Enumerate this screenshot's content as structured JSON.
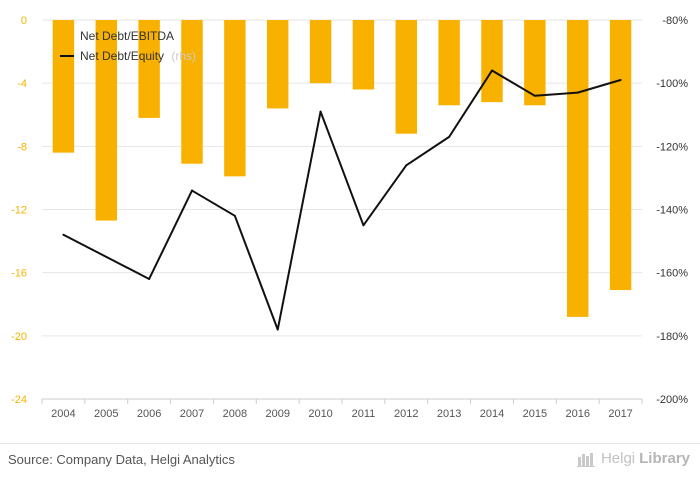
{
  "chart_data": {
    "type": "bar",
    "categories": [
      "2004",
      "2005",
      "2006",
      "2007",
      "2008",
      "2009",
      "2010",
      "2011",
      "2012",
      "2013",
      "2014",
      "2015",
      "2016",
      "2017"
    ],
    "series": [
      {
        "name": "Net Debt/EBITDA",
        "kind": "bar",
        "axis": "left",
        "color": "#f9b100",
        "values": [
          -8.4,
          -12.7,
          -6.2,
          -9.1,
          -9.9,
          -5.6,
          -4.0,
          -4.4,
          -7.2,
          -5.4,
          -5.2,
          -5.4,
          -18.8,
          -17.1
        ]
      },
      {
        "name": "Net Debt/Equity",
        "name_suffix": "(rhs)",
        "kind": "line",
        "axis": "right",
        "color": "#111111",
        "values": [
          -148,
          -155,
          -162,
          -134,
          -142,
          -178,
          -109,
          -145,
          -126,
          -117,
          -96,
          -104,
          -103,
          -99
        ]
      }
    ],
    "left_axis": {
      "ylim": [
        -24,
        0
      ],
      "ticks": [
        0,
        -4,
        -8,
        -12,
        -16,
        -20,
        -24
      ],
      "tick_labels": [
        "0",
        "-4",
        "-8",
        "-12",
        "-16",
        "-20",
        "-24"
      ]
    },
    "right_axis": {
      "ylim": [
        -200,
        -80
      ],
      "ticks": [
        -80,
        -100,
        -120,
        -140,
        -160,
        -180,
        -200
      ],
      "tick_labels": [
        "-80%",
        "-100%",
        "-120%",
        "-140%",
        "-160%",
        "-180%",
        "-200%"
      ]
    },
    "grid": true,
    "legend_position": "top-left"
  },
  "footer": {
    "source": "Source: Company Data, Helgi Analytics",
    "brand_light": "Helgi",
    "brand_strong": "Library"
  }
}
